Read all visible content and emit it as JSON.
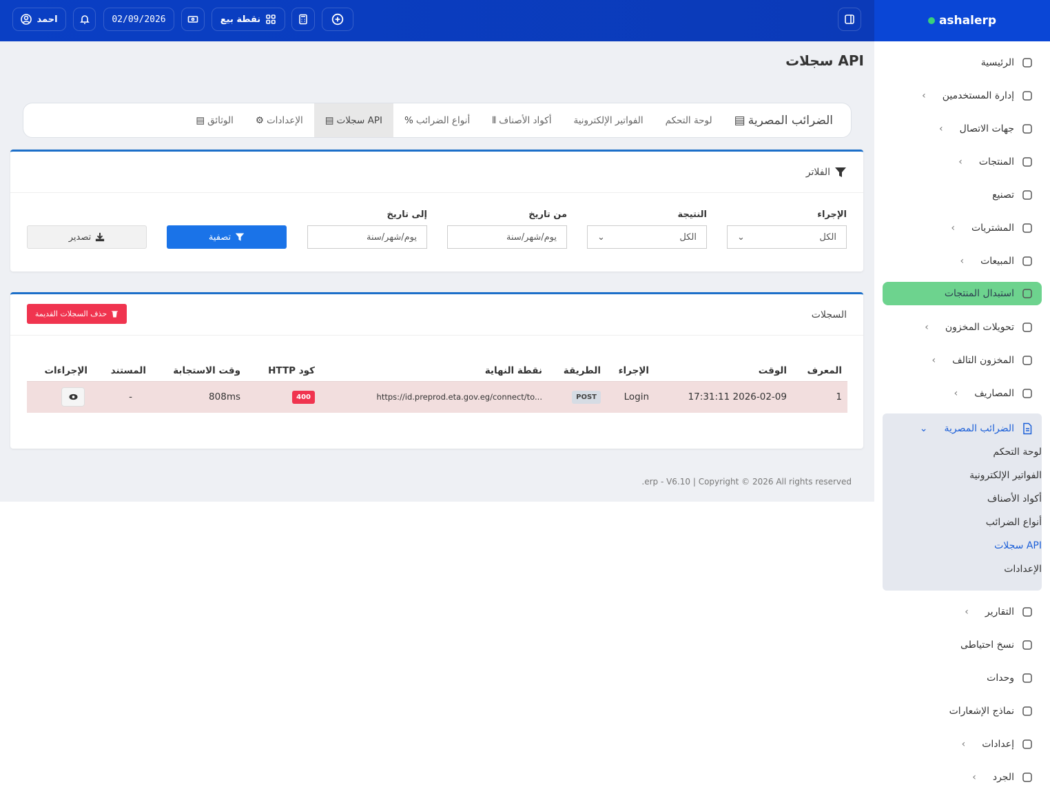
{
  "header": {
    "user": "احمد",
    "date": "02/09/2026",
    "pos_label": "نقطة بيع"
  },
  "brand": {
    "name": "ashalerp"
  },
  "sidebar": {
    "items": [
      {
        "label": "الرئيسية",
        "icon": "home-icon",
        "chevron": false
      },
      {
        "label": "إدارة المستخدمين",
        "icon": "users-icon",
        "chevron": true
      },
      {
        "label": "جهات الاتصال",
        "icon": "contacts-icon",
        "chevron": true
      },
      {
        "label": "المنتجات",
        "icon": "box-icon",
        "chevron": true
      },
      {
        "label": "تصنيع",
        "icon": "factory-icon",
        "chevron": false
      },
      {
        "label": "المشتريات",
        "icon": "download-icon",
        "chevron": true
      },
      {
        "label": "المبيعات",
        "icon": "upload-icon",
        "chevron": true
      },
      {
        "label": "استبدال المنتجات",
        "icon": "swap-icon",
        "chevron": false
      },
      {
        "label": "تحويلات المخزون",
        "icon": "truck-icon",
        "chevron": true
      },
      {
        "label": "المخزون التالف",
        "icon": "database-icon",
        "chevron": true
      },
      {
        "label": "المصاريف",
        "icon": "receipt-icon",
        "chevron": true
      }
    ],
    "group": {
      "label": "الضرائب المصرية",
      "icon": "document-icon",
      "sub": [
        "لوحة التحكم",
        "الفواتير الإلكترونية",
        "أكواد الأصناف",
        "أنواع الضرائب",
        "سجلات API",
        "الإعدادات"
      ]
    },
    "items_after": [
      {
        "label": "التقارير",
        "icon": "report-icon",
        "chevron": true
      },
      {
        "label": "نسخ احتياطى",
        "icon": "cloud-icon",
        "chevron": false
      },
      {
        "label": "وحدات",
        "icon": "layers-icon",
        "chevron": false
      },
      {
        "label": "نماذج الإشعارات",
        "icon": "mail-icon",
        "chevron": false
      },
      {
        "label": "إعدادات",
        "icon": "gear-icon",
        "chevron": true
      },
      {
        "label": "الجرد",
        "icon": "inventory-icon",
        "chevron": true
      }
    ]
  },
  "page": {
    "title": "سجلات API"
  },
  "tabs": [
    "الضرائب المصرية",
    "لوحة التحكم",
    "الفواتير الإلكترونية",
    "أكواد الأصناف",
    "أنواع الضرائب",
    "سجلات API",
    "الإعدادات",
    "الوثائق"
  ],
  "filters": {
    "title": "الفلاتر",
    "action_label": "الإجراء",
    "action_value": "الكل",
    "result_label": "النتيجة",
    "result_value": "الكل",
    "from_label": "من تاريخ",
    "from_placeholder": "يوم/شهر/سنة",
    "to_label": "إلى تاريخ",
    "to_placeholder": "يوم/شهر/سنة",
    "filter_button": "تصفية",
    "export_button": "تصدير"
  },
  "logs": {
    "title": "السجلات",
    "delete_button": "حذف السجلات القديمة",
    "columns": [
      "المعرف",
      "الوقت",
      "الإجراء",
      "الطريقة",
      "نقطة النهاية",
      "كود HTTP",
      "وقت الاستجابة",
      "المستند",
      "الإجراءات"
    ],
    "rows": [
      {
        "id": "1",
        "time": "2026-02-09 17:31:11",
        "action": "Login",
        "method": "POST",
        "endpoint": "https://id.preprod.eta.gov.eg/connect/to...",
        "http": "400",
        "response_time": "808ms",
        "document": "-"
      }
    ]
  },
  "footer": {
    "text": ".erp - V6.10 | Copyright © 2026 All rights reserved"
  },
  "colors": {
    "header": "#0a3fc4",
    "primary": "#1a73e8",
    "danger": "#f0344f",
    "active": "#6dd38e",
    "row_error": "#f2dede"
  }
}
